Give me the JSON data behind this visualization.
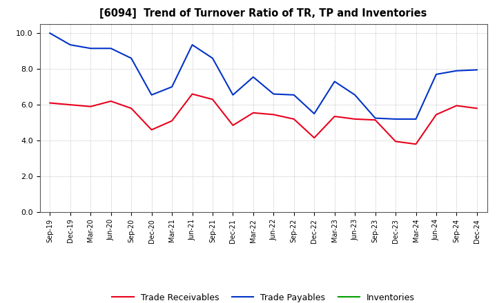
{
  "title": "[6094]  Trend of Turnover Ratio of TR, TP and Inventories",
  "x_labels": [
    "Sep-19",
    "Dec-19",
    "Mar-20",
    "Jun-20",
    "Sep-20",
    "Dec-20",
    "Mar-21",
    "Jun-21",
    "Sep-21",
    "Dec-21",
    "Mar-22",
    "Jun-22",
    "Sep-22",
    "Dec-22",
    "Mar-23",
    "Jun-23",
    "Sep-23",
    "Dec-23",
    "Mar-24",
    "Jun-24",
    "Sep-24",
    "Dec-24"
  ],
  "trade_receivables": [
    6.1,
    6.0,
    5.9,
    6.2,
    5.8,
    4.6,
    5.1,
    6.6,
    6.3,
    4.85,
    5.55,
    5.45,
    5.2,
    4.15,
    5.35,
    5.2,
    5.15,
    3.95,
    3.8,
    5.45,
    5.95,
    5.8
  ],
  "trade_payables": [
    10.0,
    9.35,
    9.15,
    9.15,
    8.6,
    6.55,
    7.0,
    9.35,
    8.6,
    6.55,
    7.55,
    6.6,
    6.55,
    5.5,
    7.3,
    6.55,
    5.25,
    5.2,
    5.2,
    7.7,
    7.9,
    7.95
  ],
  "inventories": [
    null,
    null,
    null,
    null,
    null,
    null,
    null,
    null,
    null,
    null,
    null,
    null,
    null,
    null,
    null,
    null,
    null,
    null,
    null,
    null,
    null,
    null
  ],
  "tr_color": "#e8001c",
  "tp_color": "#0032c8",
  "inv_color": "#00a000",
  "ylim": [
    0.0,
    10.5
  ],
  "yticks": [
    0.0,
    2.0,
    4.0,
    6.0,
    8.0,
    10.0
  ],
  "background_color": "#ffffff",
  "grid_color": "#aaaaaa",
  "legend_labels": [
    "Trade Receivables",
    "Trade Payables",
    "Inventories"
  ]
}
